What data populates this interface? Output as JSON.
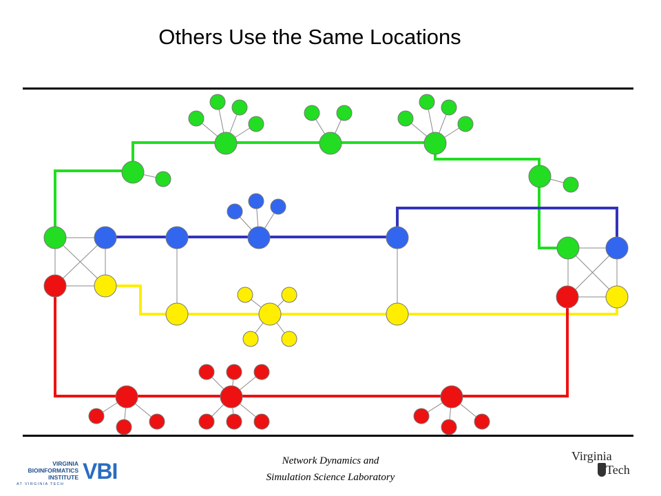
{
  "title": "Others Use the Same Locations",
  "footer": {
    "line1": "Network Dynamics and",
    "line2": "Simulation Science Laboratory"
  },
  "logos": {
    "vbi": {
      "words": [
        "VIRGINIA",
        "BIOINFORMATICS",
        "INSTITUTE"
      ],
      "sub": "AT VIRGINIA TECH",
      "mark": "VBI"
    },
    "vt": {
      "word1": "Virginia",
      "word2": "Tech"
    }
  },
  "colors": {
    "green": "#22dd22",
    "blue": "#3366ee",
    "yellow": "#ffee00",
    "red": "#ee1111",
    "green_line": "#22dd22",
    "blue_line": "#3333bb",
    "yellow_line": "#ffee00",
    "red_line": "#ee1111"
  }
}
